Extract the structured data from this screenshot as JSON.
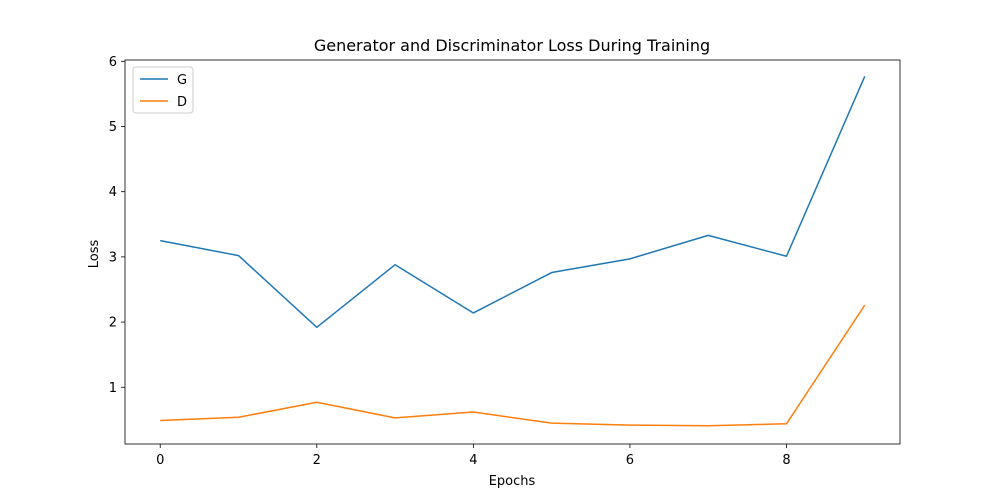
{
  "chart_data": {
    "type": "line",
    "title": "Generator and Discriminator Loss During Training",
    "xlabel": "Epochs",
    "ylabel": "Loss",
    "x": [
      0,
      1,
      2,
      3,
      4,
      5,
      6,
      7,
      8,
      9
    ],
    "xlim": [
      -0.45,
      9.45
    ],
    "ylim": [
      0.13,
      6.02
    ],
    "xticks": [
      0,
      2,
      4,
      6,
      8
    ],
    "yticks": [
      1,
      2,
      3,
      4,
      5,
      6
    ],
    "grid": false,
    "legend_position": "top-left",
    "series": [
      {
        "name": "G",
        "color": "#1f77b4",
        "values": [
          3.25,
          3.02,
          1.92,
          2.88,
          2.14,
          2.76,
          2.97,
          3.33,
          3.01,
          5.77
        ]
      },
      {
        "name": "D",
        "color": "#ff7f0e",
        "values": [
          0.49,
          0.54,
          0.77,
          0.53,
          0.62,
          0.45,
          0.42,
          0.41,
          0.44,
          2.26
        ]
      }
    ]
  }
}
